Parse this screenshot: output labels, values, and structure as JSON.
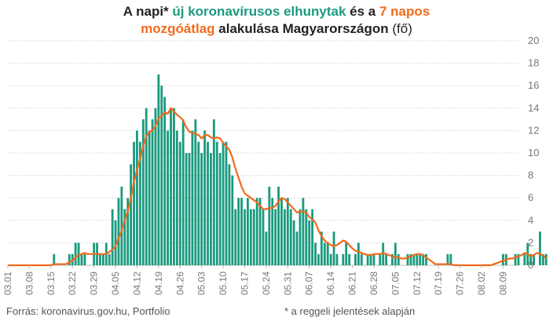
{
  "title": {
    "p1": "A napi* ",
    "p2": "új koronavírusos elhunytak",
    "p3": " és a ",
    "p4": "7 napos",
    "p5": "mozgóátlag",
    "p6": " alakulása Magyarországon",
    "p7": " (fő)"
  },
  "footer": {
    "source": "Forrás: koronavirus.gov.hu, Portfolio",
    "note": "* a reggeli jelentések alapján"
  },
  "colors": {
    "bars": "#1a9a7e",
    "line": "#f26a1b",
    "grid": "#d9d9d9",
    "axis_text": "#777777"
  },
  "chart_data": {
    "type": "bar",
    "start_date": "03.01",
    "x_tick_labels": [
      "03.01",
      "03.08",
      "03.15",
      "03.22",
      "03.29",
      "04.05",
      "04.12",
      "04.19",
      "04.26",
      "05.03",
      "05.10",
      "05.17",
      "05.24",
      "05.31",
      "06.07",
      "06.14",
      "06.21",
      "06.28",
      "07.05",
      "07.12",
      "07.19",
      "07.26",
      "08.02",
      "08.09"
    ],
    "ylim": [
      0,
      20
    ],
    "y_ticks": [
      0,
      2,
      4,
      6,
      8,
      10,
      12,
      14,
      16,
      18,
      20
    ],
    "y_axis_side": "right",
    "grid": true,
    "series": [
      {
        "kind": "bar",
        "values": [
          0,
          0,
          0,
          0,
          0,
          0,
          0,
          0,
          0,
          0,
          0,
          0,
          0,
          0,
          0,
          1,
          0,
          0,
          0,
          0,
          1,
          1,
          2,
          2,
          1,
          1,
          0,
          0,
          2,
          2,
          1,
          1,
          2,
          1,
          5,
          4,
          6,
          7,
          5,
          6,
          9,
          11,
          12,
          11,
          13,
          14,
          12,
          13,
          14,
          17,
          16,
          15,
          12,
          14,
          14,
          12,
          11,
          13,
          10,
          10,
          12,
          13,
          11,
          10,
          12,
          11,
          10,
          13,
          11,
          10,
          11,
          11,
          9,
          8,
          5,
          6,
          6,
          5,
          6,
          5,
          5,
          6,
          6,
          5,
          3,
          7,
          6,
          5,
          7,
          6,
          5,
          6,
          5,
          4,
          3,
          5,
          6,
          5,
          4,
          5,
          2,
          1,
          3,
          2,
          2,
          1,
          3,
          1,
          0,
          1,
          2,
          1,
          0,
          1,
          2,
          1,
          0,
          1,
          1,
          1,
          0,
          1,
          2,
          1,
          0,
          1,
          2,
          1,
          0,
          0,
          1,
          1,
          1,
          1,
          1,
          1,
          1,
          0,
          0,
          0,
          0,
          0,
          0,
          1,
          1,
          0,
          0,
          0,
          0,
          0,
          0,
          0,
          0,
          0,
          0,
          0,
          0,
          0,
          0,
          0,
          0,
          1,
          1,
          0,
          0,
          1,
          1,
          0,
          1,
          2,
          1,
          1,
          0,
          3,
          1,
          1,
          0
        ],
        "note": "daily values starting 03.01"
      },
      {
        "kind": "line",
        "values": [
          0,
          0,
          0,
          0,
          0,
          0,
          0,
          0,
          0,
          0,
          0,
          0,
          0,
          0,
          0,
          0.1,
          0.1,
          0.1,
          0.1,
          0.1,
          0.3,
          0.4,
          0.7,
          0.9,
          1.0,
          1.1,
          1.0,
          1.0,
          1.0,
          1.0,
          1.0,
          1.0,
          1.0,
          1.2,
          1.4,
          1.7,
          2.4,
          3.1,
          4.0,
          4.8,
          6.0,
          7.4,
          8.5,
          9.5,
          10.6,
          11.5,
          11.9,
          12.0,
          12.4,
          13.1,
          13.3,
          13.6,
          13.5,
          14.0,
          13.7,
          13.4,
          13.2,
          12.9,
          12.3,
          11.9,
          11.8,
          11.7,
          11.6,
          11.3,
          11.6,
          11.6,
          11.4,
          11.3,
          11.4,
          11.3,
          10.9,
          10.6,
          10.3,
          9.6,
          8.6,
          7.8,
          7.0,
          6.4,
          6.2,
          6.0,
          5.8,
          5.6,
          5.3,
          5.0,
          5.0,
          5.1,
          5.1,
          5.3,
          5.7,
          6.0,
          5.9,
          5.6,
          5.3,
          5.0,
          4.7,
          4.8,
          4.8,
          4.7,
          4.3,
          4.1,
          3.8,
          3.1,
          2.6,
          2.2,
          2.0,
          1.8,
          1.7,
          1.8,
          2.0,
          2.2,
          2.1,
          1.8,
          1.5,
          1.3,
          1.2,
          1.1,
          1.0,
          0.9,
          0.9,
          1.0,
          1.0,
          1.0,
          1.1,
          1.0,
          0.9,
          0.8,
          0.7,
          0.7,
          0.6,
          0.6,
          0.7,
          0.8,
          0.9,
          1.0,
          1.0,
          0.9,
          0.7,
          0.5,
          0.3,
          0.1,
          0.1,
          0.1,
          0.1,
          0.1,
          0.1,
          0,
          0,
          0,
          0,
          0,
          0,
          0,
          0,
          0,
          0,
          0,
          0,
          0,
          0.1,
          0.2,
          0.3,
          0.4,
          0.5,
          0.6,
          0.6,
          0.7,
          0.8,
          0.9,
          1.1,
          1.0,
          0.8,
          0.9,
          1.1,
          1.0,
          0.9,
          0.6
        ]
      }
    ]
  }
}
